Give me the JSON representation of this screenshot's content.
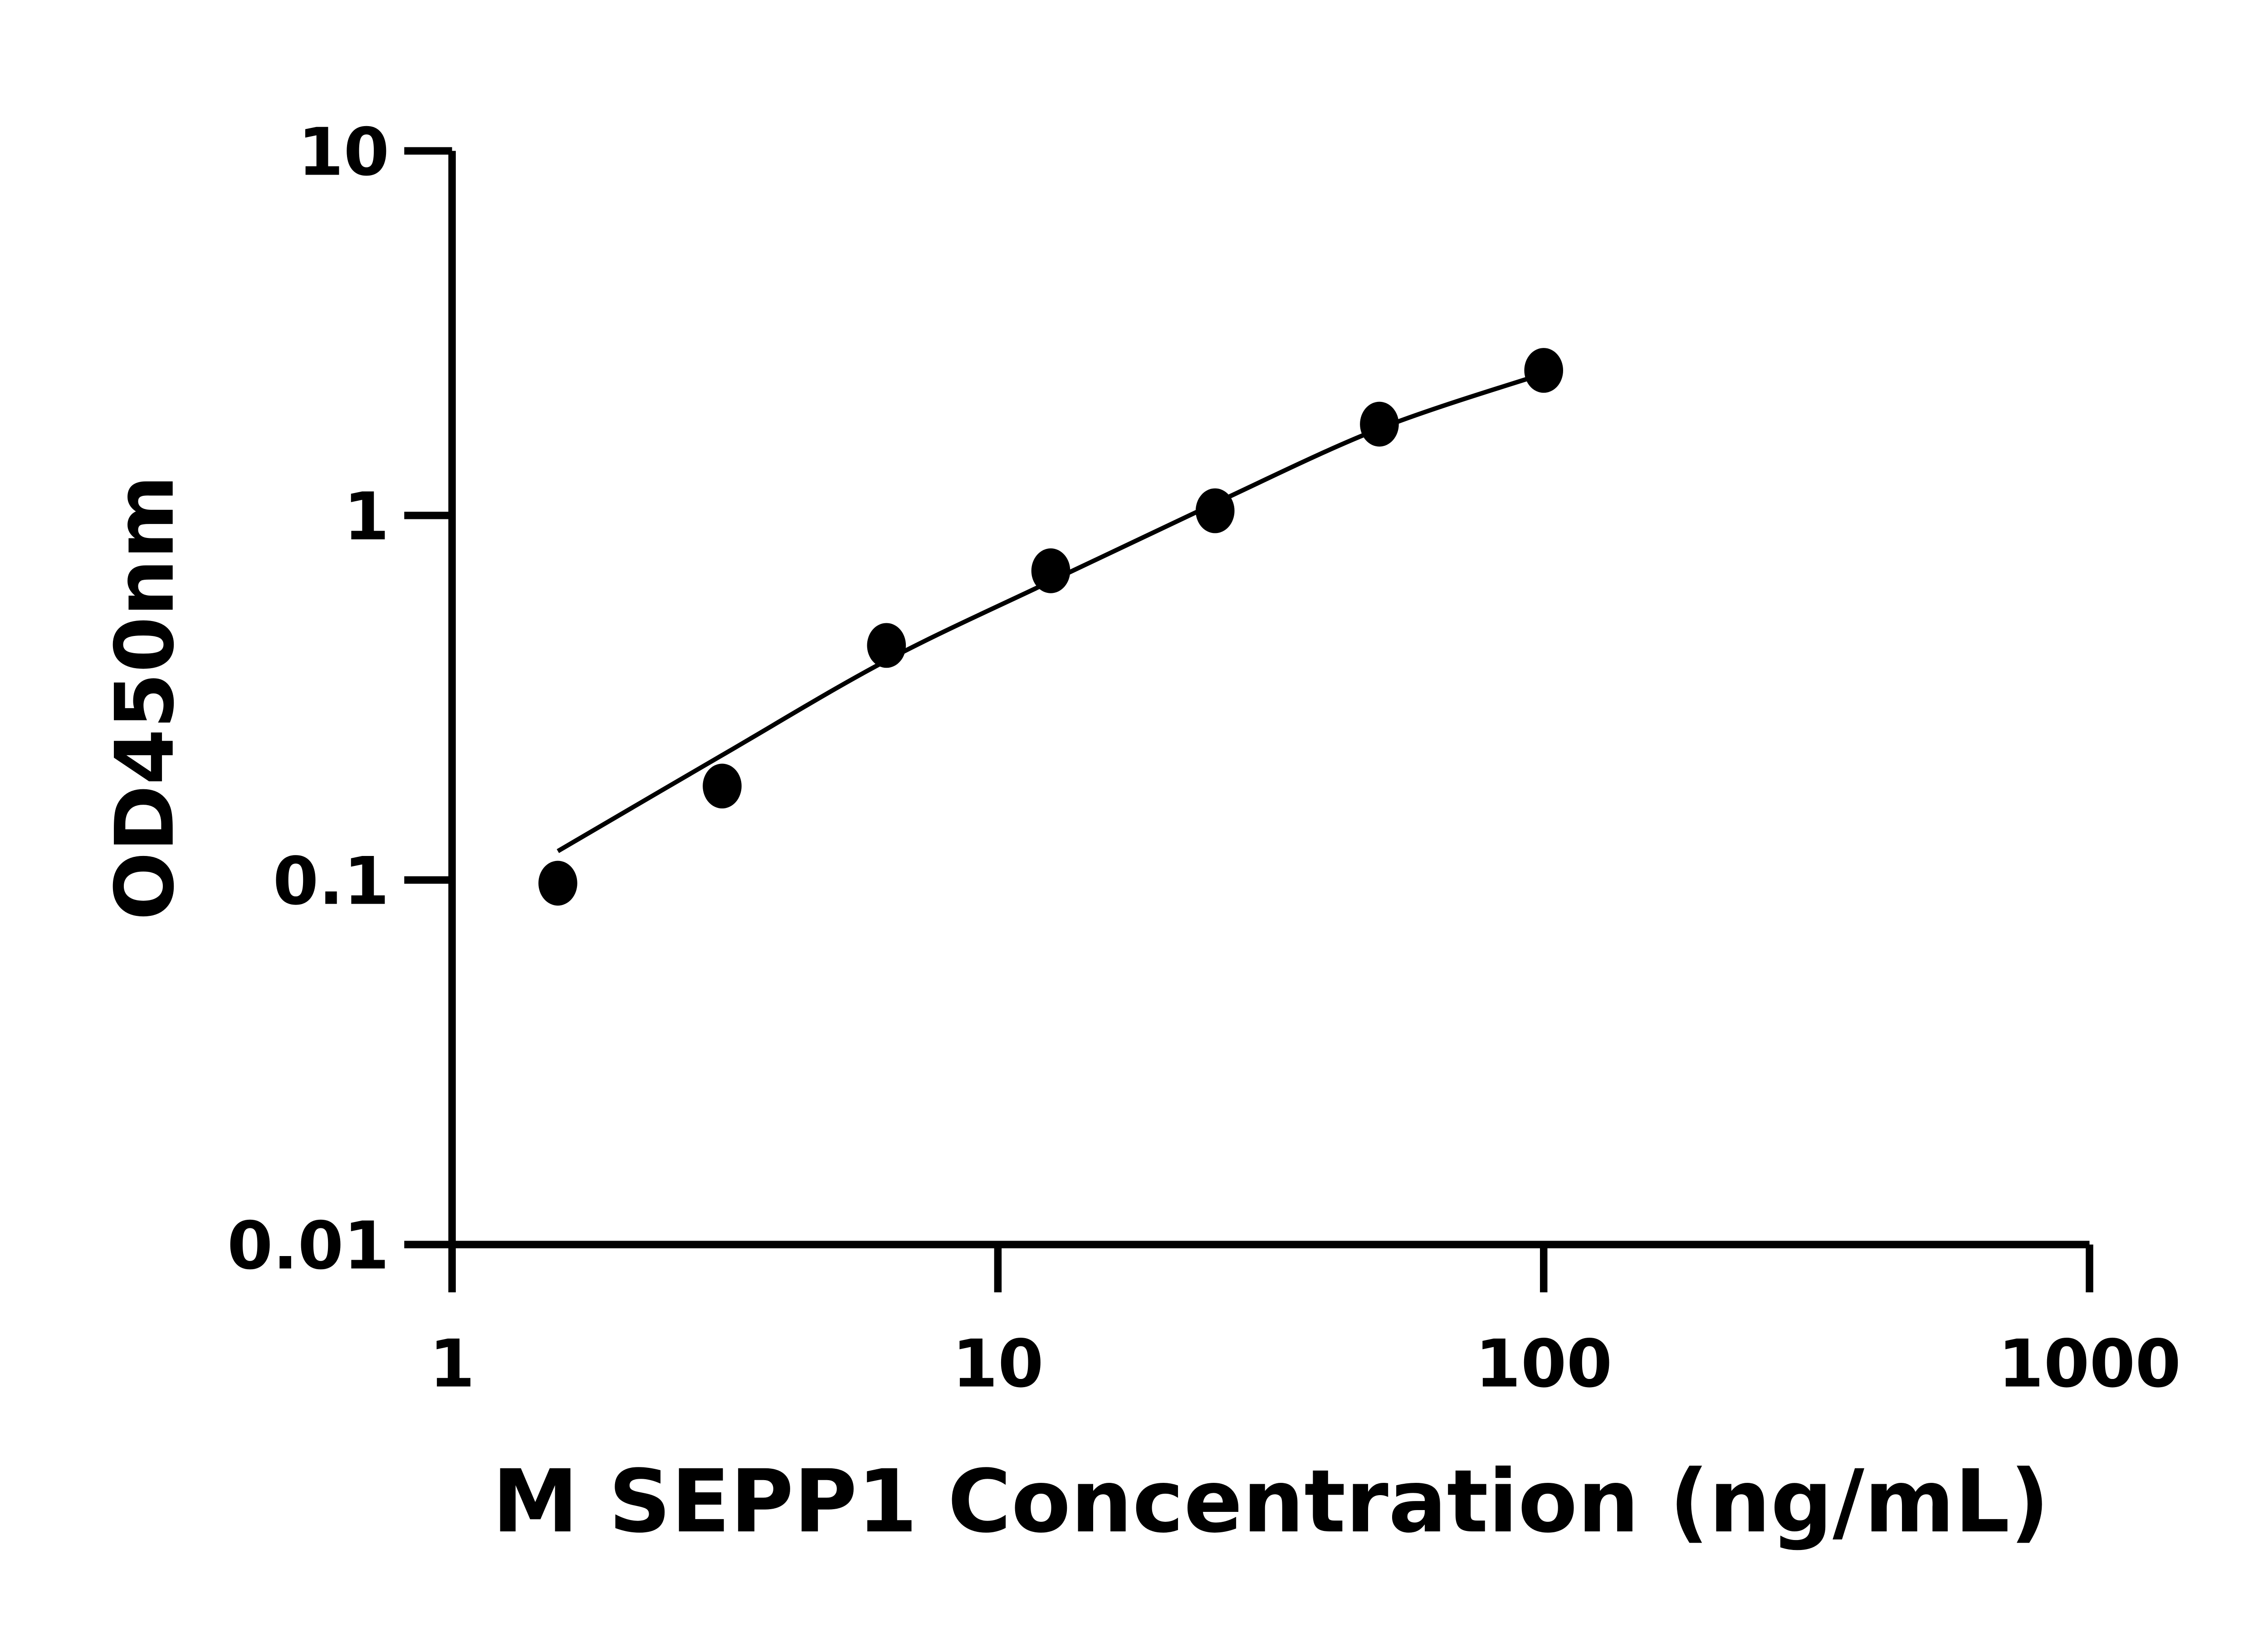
{
  "chart_data": {
    "type": "scatter",
    "title": "",
    "xlabel": "M SEPP1 Concentration (ng/mL)",
    "ylabel": "OD450nm",
    "x_scale": "log",
    "y_scale": "log",
    "xlim": [
      1,
      1000
    ],
    "ylim": [
      0.01,
      10
    ],
    "x_ticks": [
      "1",
      "10",
      "100",
      "1000"
    ],
    "y_ticks": [
      "0.01",
      "0.1",
      "1",
      "10"
    ],
    "grid": false,
    "legend": "none",
    "colors": {
      "points": "#000000",
      "curve": "#000000"
    },
    "points": {
      "x": [
        1.5625,
        3.125,
        6.25,
        12.5,
        25,
        50,
        100
      ],
      "y": [
        0.098,
        0.181,
        0.44,
        0.705,
        1.03,
        1.78,
        2.5
      ]
    },
    "fit_curve": {
      "x": [
        1.5625,
        3.125,
        6.25,
        12.5,
        25,
        50,
        100
      ],
      "y": [
        0.12,
        0.22,
        0.4,
        0.66,
        1.08,
        1.73,
        2.45
      ]
    }
  }
}
